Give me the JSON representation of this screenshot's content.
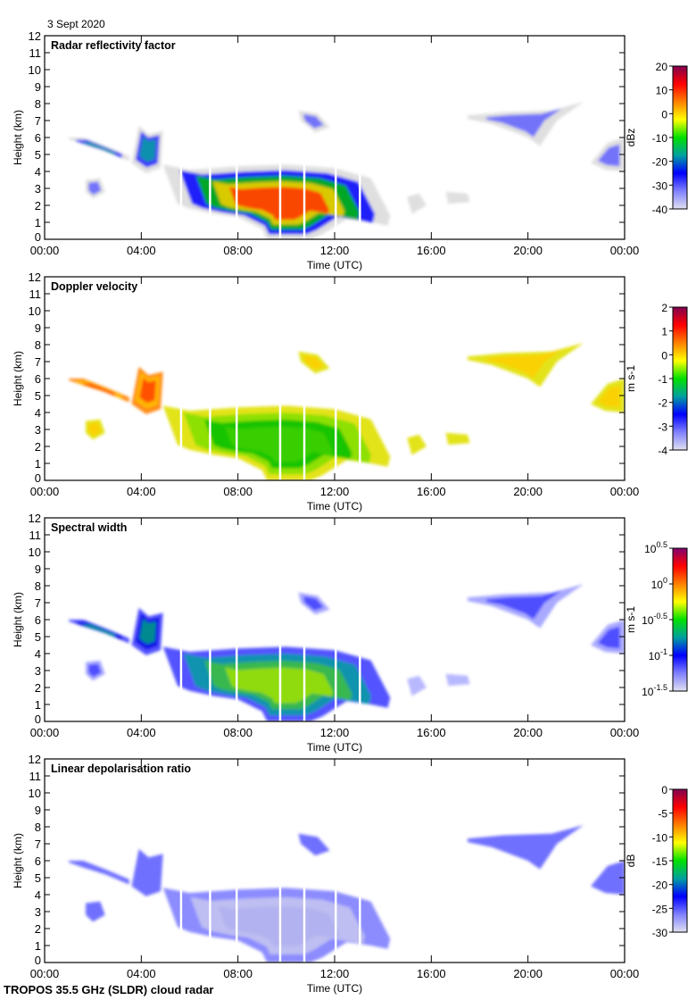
{
  "date_label": "3 Sept 2020",
  "footer": "TROPOS 35.5 GHz (SLDR) cloud radar",
  "chart_data": [
    {
      "type": "heatmap",
      "title": "Radar reflectivity factor",
      "xlabel": "Time (UTC)",
      "ylabel": "Height (km)",
      "xlim": [
        0,
        24
      ],
      "ylim": [
        0,
        12
      ],
      "xticks": [
        "00:00",
        "04:00",
        "08:00",
        "12:00",
        "16:00",
        "20:00",
        "00:00"
      ],
      "colorbar": {
        "label": "dBz",
        "ticks": [
          "20",
          "10",
          "0",
          "-10",
          "-20",
          "-30",
          "-40"
        ],
        "range": [
          -40,
          20
        ],
        "colors": [
          "#800050",
          "#ff0000",
          "#ff8000",
          "#ffff00",
          "#00e000",
          "#00a0a0",
          "#0000ff",
          "#8080ff",
          "#e0e0f0"
        ]
      },
      "layers": {
        "main": [
          "#dcdcdc",
          "#0000ff",
          "#00c000",
          "#ffd000",
          "#ff3000"
        ],
        "mid": [
          "#dcdcdc",
          "#2020ff",
          "#00a0a0"
        ],
        "weak": [
          "#dcdcdc",
          "#6060ff"
        ],
        "faint": [
          "#dcdcdc"
        ]
      }
    },
    {
      "type": "heatmap",
      "title": "Doppler velocity",
      "xlabel": "Time (UTC)",
      "ylabel": "Height (km)",
      "xlim": [
        0,
        24
      ],
      "ylim": [
        0,
        12
      ],
      "xticks": [
        "00:00",
        "04:00",
        "08:00",
        "12:00",
        "16:00",
        "20:00",
        "00:00"
      ],
      "colorbar": {
        "label": "m s-1",
        "ticks": [
          "2",
          "1",
          "0",
          "-1",
          "-2",
          "-3",
          "-4"
        ],
        "range": [
          -4,
          2
        ],
        "colors": [
          "#800050",
          "#ff0000",
          "#ff8000",
          "#ffff00",
          "#00e000",
          "#00a0a0",
          "#0000ff",
          "#8080ff",
          "#e0e0f0"
        ]
      },
      "layers": {
        "main": [
          "#e0e000",
          "#80e000",
          "#00c000",
          "#40d000"
        ],
        "mid": [
          "#ff8000",
          "#ffc000",
          "#ff4000"
        ],
        "weak": [
          "#e0e000",
          "#ffd000"
        ],
        "faint": [
          "#e0e000"
        ]
      }
    },
    {
      "type": "heatmap",
      "title": "Spectral width",
      "xlabel": "Time (UTC)",
      "ylabel": "Height (km)",
      "xlim": [
        0,
        24
      ],
      "ylim": [
        0,
        12
      ],
      "xticks": [
        "00:00",
        "04:00",
        "08:00",
        "12:00",
        "16:00",
        "20:00",
        "00:00"
      ],
      "colorbar": {
        "label": "m s-1",
        "ticks": [
          "10^0.5",
          "10^0",
          "10^-0.5",
          "10^-1",
          "10^-1.5"
        ],
        "range": [
          -1.5,
          0.5
        ],
        "colors": [
          "#800070",
          "#ff0000",
          "#ff8000",
          "#ffff00",
          "#00e000",
          "#00a0a0",
          "#0000ff",
          "#8080ff",
          "#e0e0f0"
        ]
      },
      "layers": {
        "main": [
          "#4040ff",
          "#00a0a0",
          "#40c040",
          "#a0e000"
        ],
        "mid": [
          "#4040ff",
          "#0000e0",
          "#00a080"
        ],
        "weak": [
          "#a0a0ff",
          "#4040ff"
        ],
        "faint": [
          "#b0b0ff"
        ]
      }
    },
    {
      "type": "heatmap",
      "title": "Linear depolarisation ratio",
      "xlabel": "Time (UTC)",
      "ylabel": "Height (km)",
      "xlim": [
        0,
        24
      ],
      "ylim": [
        0,
        12
      ],
      "xticks": [
        "00:00",
        "04:00",
        "08:00",
        "12:00",
        "16:00",
        "20:00",
        "00:00"
      ],
      "colorbar": {
        "label": "dB",
        "ticks": [
          "0",
          "-5",
          "-10",
          "-15",
          "-20",
          "-25",
          "-30"
        ],
        "range": [
          -30,
          0
        ],
        "colors": [
          "#800050",
          "#ff0000",
          "#ff8000",
          "#ffff00",
          "#00e000",
          "#00a0a0",
          "#0000ff",
          "#8080ff",
          "#e0e0f0"
        ]
      },
      "layers": {
        "main": [
          "#8080ff",
          "#c8c8f0",
          "#b0b0f0"
        ],
        "mid": [
          "#6060ff"
        ],
        "weak": [
          "#6060ff"
        ],
        "faint": null
      }
    },
    {
      "regions": [
        {
          "kind": "main",
          "poly": [
            [
              4.9,
              4.4
            ],
            [
              6,
              4.1
            ],
            [
              8,
              4.3
            ],
            [
              10,
              4.4
            ],
            [
              12,
              4.2
            ],
            [
              13.5,
              3.6
            ],
            [
              14.3,
              1.4
            ],
            [
              14.2,
              0.8
            ],
            [
              13.5,
              1
            ],
            [
              12.5,
              1.2
            ],
            [
              11.5,
              0.3
            ],
            [
              11,
              0
            ],
            [
              9.2,
              0
            ],
            [
              9,
              0.6
            ],
            [
              8,
              1.3
            ],
            [
              7,
              1.5
            ],
            [
              6,
              1.8
            ],
            [
              5.5,
              2.1
            ]
          ]
        },
        {
          "kind": "mid",
          "poly": [
            [
              1,
              5.9
            ],
            [
              1.6,
              5.6
            ],
            [
              2.5,
              5.2
            ],
            [
              3,
              4.9
            ],
            [
              3.5,
              4.6
            ],
            [
              3.5,
              4.9
            ],
            [
              2.5,
              5.5
            ],
            [
              1.6,
              6
            ],
            [
              1,
              6
            ]
          ]
        },
        {
          "kind": "mid",
          "poly": [
            [
              3.6,
              4.5
            ],
            [
              3.9,
              6.7
            ],
            [
              4.3,
              6.2
            ],
            [
              4.9,
              6.4
            ],
            [
              4.8,
              4.2
            ],
            [
              4.2,
              3.9
            ]
          ]
        },
        {
          "kind": "weak",
          "poly": [
            [
              10.5,
              7.6
            ],
            [
              11.3,
              7.4
            ],
            [
              11.8,
              6.6
            ],
            [
              11.2,
              6.3
            ],
            [
              10.6,
              7.0
            ]
          ]
        },
        {
          "kind": "weak",
          "poly": [
            [
              17.5,
              7.3
            ],
            [
              19,
              7.5
            ],
            [
              21,
              7.6
            ],
            [
              22.3,
              8.1
            ],
            [
              21.2,
              7
            ],
            [
              20.5,
              5.5
            ],
            [
              20,
              6.0
            ],
            [
              18.5,
              6.8
            ],
            [
              17.5,
              7.1
            ]
          ]
        },
        {
          "kind": "weak",
          "poly": [
            [
              22.6,
              4.5
            ],
            [
              23.3,
              5.7
            ],
            [
              24,
              6.0
            ],
            [
              24,
              4.0
            ],
            [
              23.2,
              4.1
            ]
          ]
        },
        {
          "kind": "weak",
          "poly": [
            [
              1.7,
              3.5
            ],
            [
              2.3,
              3.6
            ],
            [
              2.5,
              2.8
            ],
            [
              2.0,
              2.4
            ],
            [
              1.7,
              2.8
            ]
          ]
        },
        {
          "kind": "faint",
          "poly": [
            [
              15.0,
              2.5
            ],
            [
              15.5,
              2.7
            ],
            [
              15.8,
              2.0
            ],
            [
              15.2,
              1.5
            ]
          ]
        },
        {
          "kind": "faint",
          "poly": [
            [
              16.6,
              2.8
            ],
            [
              17.5,
              2.7
            ],
            [
              17.6,
              2.2
            ],
            [
              16.7,
              2.1
            ]
          ]
        }
      ],
      "gaps_hours": [
        5.6,
        6.8,
        7.9,
        9.7,
        10.7,
        12.0,
        13.0
      ]
    }
  ]
}
